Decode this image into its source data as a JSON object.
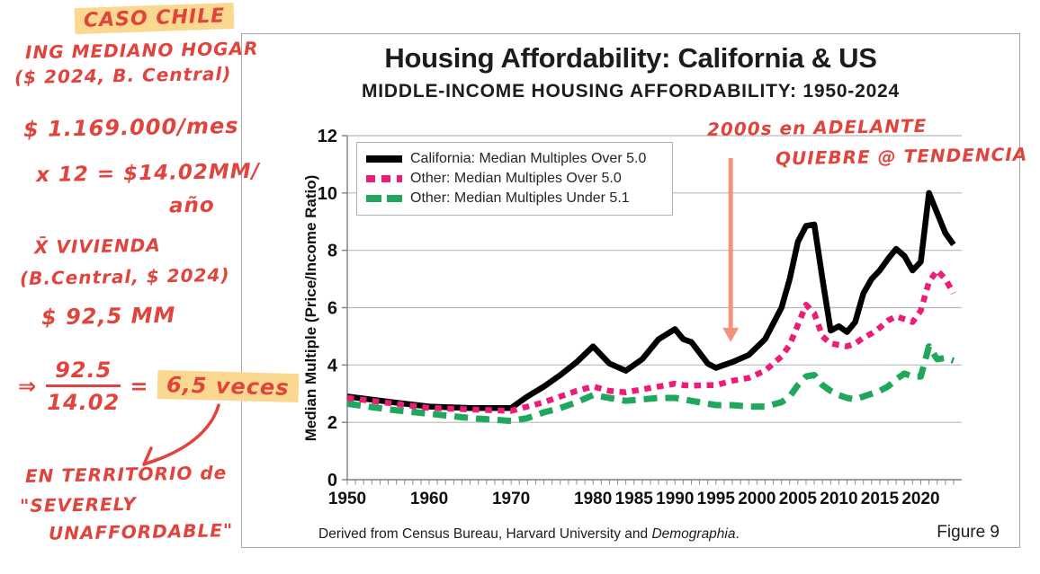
{
  "page": {
    "background": "#ffffff",
    "panel_border": "#a8a8a8"
  },
  "chart_data": {
    "type": "line",
    "title": "Housing Affordability: California & US",
    "subtitle": "MIDDLE-INCOME HOUSING AFFORDABILITY: 1950-2024",
    "ylabel": "Median Multiple (Price/Income Ratio)",
    "ylim": [
      0,
      12
    ],
    "ytick_interval": 2,
    "xlim": [
      1950,
      2025
    ],
    "xtick_labels": [
      1950,
      1960,
      1970,
      1980,
      1985,
      1990,
      1995,
      2000,
      2005,
      2010,
      2015,
      2020
    ],
    "grid": "horizontal",
    "gridline_color": "#b8b8b8",
    "axis_color": "#7f7f7f",
    "legend_position": "top-left",
    "x": [
      1950,
      1955,
      1960,
      1965,
      1970,
      1972,
      1974,
      1976,
      1978,
      1980,
      1982,
      1984,
      1986,
      1988,
      1990,
      1991,
      1992,
      1994,
      1995,
      1997,
      1999,
      2001,
      2003,
      2004,
      2005,
      2006,
      2007,
      2008,
      2009,
      2010,
      2011,
      2012,
      2013,
      2014,
      2015,
      2016,
      2017,
      2018,
      2019,
      2020,
      2021,
      2022,
      2023,
      2024
    ],
    "series": [
      {
        "name": "California: Median Multiples Over 5.0",
        "color": "#000000",
        "style": "solid",
        "values": [
          2.9,
          2.72,
          2.55,
          2.5,
          2.5,
          2.9,
          3.25,
          3.65,
          4.1,
          4.65,
          4.05,
          3.8,
          4.2,
          4.9,
          5.25,
          4.9,
          4.8,
          4.05,
          3.9,
          4.1,
          4.35,
          4.9,
          6.0,
          7.0,
          8.3,
          8.85,
          8.9,
          7.0,
          5.2,
          5.35,
          5.15,
          5.5,
          6.5,
          7.0,
          7.3,
          7.7,
          8.05,
          7.8,
          7.3,
          7.6,
          10.0,
          9.3,
          8.6,
          8.2
        ]
      },
      {
        "name": "Other: Median Multiples Over 5.0",
        "color": "#ec1c77",
        "style": "dotted",
        "values": [
          2.85,
          2.68,
          2.5,
          2.45,
          2.4,
          2.55,
          2.7,
          2.9,
          3.1,
          3.25,
          3.1,
          3.05,
          3.15,
          3.25,
          3.35,
          3.3,
          3.28,
          3.3,
          3.3,
          3.45,
          3.55,
          3.8,
          4.3,
          4.7,
          5.4,
          6.1,
          5.8,
          5.0,
          4.75,
          4.7,
          4.65,
          4.75,
          4.95,
          5.1,
          5.3,
          5.55,
          5.7,
          5.6,
          5.5,
          5.9,
          6.9,
          7.3,
          7.0,
          6.5
        ]
      },
      {
        "name": "Other: Median Multiples Under 5.1",
        "color": "#1fa75c",
        "style": "dashed",
        "values": [
          2.65,
          2.45,
          2.3,
          2.15,
          2.05,
          2.15,
          2.35,
          2.5,
          2.7,
          2.95,
          2.85,
          2.75,
          2.8,
          2.85,
          2.85,
          2.8,
          2.75,
          2.65,
          2.6,
          2.6,
          2.55,
          2.55,
          2.7,
          2.9,
          3.3,
          3.6,
          3.65,
          3.3,
          3.1,
          2.95,
          2.85,
          2.8,
          2.9,
          3.0,
          3.1,
          3.25,
          3.5,
          3.7,
          3.6,
          3.6,
          4.65,
          4.2,
          4.25,
          4.15
        ]
      }
    ]
  },
  "footer": {
    "source_prefix": "Derived from Census Bureau, Harvard University and ",
    "source_italic": "Demographia",
    "source_suffix": ".",
    "figure_label": "Figure 9"
  },
  "annotations": {
    "ink_color": "#e1443c",
    "highlight_color": "#fbd88f",
    "arrow_color": "#f2927f",
    "caso_chile": "CASO CHILE",
    "income_line1": "ING MEDIANO HOGAR",
    "income_line2": "($ 2024, B. Central)",
    "monthly_income": "$ 1.169.000/mes",
    "annual_calc": "x 12 = $14.02MM/",
    "annual_unit": "año",
    "house_line1": "X̄ VIVIENDA",
    "house_line2": "(B.Central, $ 2024)",
    "house_price": "$ 92,5 MM",
    "implies": "⇒",
    "frac_numerator": "92.5",
    "frac_denominator": "14.02",
    "equals_sign": "=",
    "result": "6,5 veces",
    "territory_line1": "EN TERRITORIO de",
    "territory_line2": "\"SEVERELY",
    "territory_line3": "UNAFFORDABLE\"",
    "trend_line1": "2000s en ADELANTE",
    "trend_line2": "QUIEBRE @ TENDENCIA"
  }
}
